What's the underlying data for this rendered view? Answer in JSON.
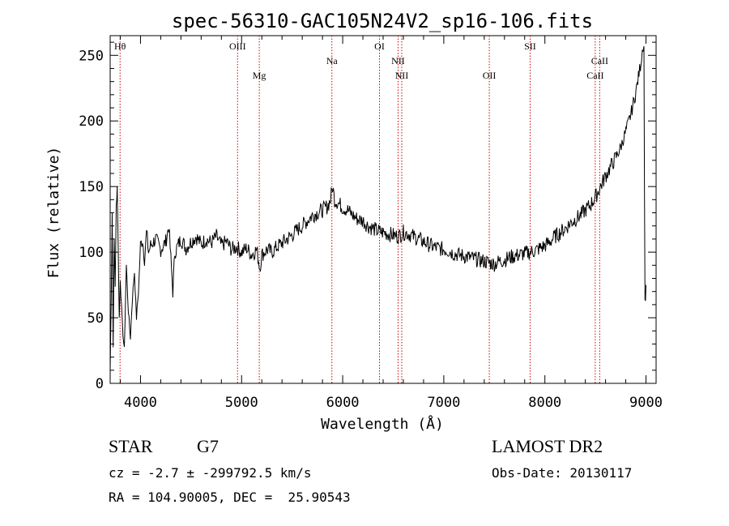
{
  "chart_data": {
    "type": "line",
    "title": "spec-56310-GAC105N24V2_sp16-106.fits",
    "xlabel": "Wavelength (Å)",
    "ylabel": "Flux (relative)",
    "xlim": [
      3700,
      9100
    ],
    "ylim": [
      0,
      265
    ],
    "x_ticks": [
      "4000",
      "5000",
      "6000",
      "7000",
      "8000",
      "9000"
    ],
    "x_tick_values": [
      4000,
      5000,
      6000,
      7000,
      8000,
      9000
    ],
    "y_ticks": [
      "0",
      "50",
      "100",
      "150",
      "200",
      "250"
    ],
    "y_tick_values": [
      0,
      50,
      100,
      150,
      200,
      250
    ],
    "grid": false,
    "line_color": "#000000",
    "marker_color": "#cc0000",
    "lines": [
      {
        "label": "Hθ",
        "x": 3798,
        "row": 0
      },
      {
        "label": "OIII",
        "x": 4960,
        "row": 0
      },
      {
        "label": "Mg",
        "x": 5175,
        "row": 2
      },
      {
        "label": "Na",
        "x": 5893,
        "row": 1
      },
      {
        "label": "OI",
        "x": 6364,
        "row": 0
      },
      {
        "label": "NII",
        "x": 6548,
        "row": 1
      },
      {
        "label": "NII",
        "x": 6584,
        "row": 2
      },
      {
        "label": "OII",
        "x": 7450,
        "row": 2
      },
      {
        "label": "SII",
        "x": 7854,
        "row": 0
      },
      {
        "label": "CaII",
        "x": 8498,
        "row": 2
      },
      {
        "label": "CaII",
        "x": 8542,
        "row": 1
      }
    ],
    "series": [
      {
        "values_xy": [
          [
            3700,
            10
          ],
          [
            3710,
            60
          ],
          [
            3720,
            130
          ],
          [
            3730,
            30
          ],
          [
            3740,
            110
          ],
          [
            3750,
            75
          ],
          [
            3760,
            135
          ],
          [
            3770,
            150
          ],
          [
            3780,
            100
          ],
          [
            3790,
            50
          ],
          [
            3800,
            80
          ],
          [
            3820,
            45
          ],
          [
            3840,
            25
          ],
          [
            3860,
            90
          ],
          [
            3880,
            55
          ],
          [
            3900,
            35
          ],
          [
            3920,
            65
          ],
          [
            3940,
            85
          ],
          [
            3960,
            50
          ],
          [
            3980,
            70
          ],
          [
            4000,
            105
          ],
          [
            4020,
            110
          ],
          [
            4040,
            95
          ],
          [
            4060,
            115
          ],
          [
            4080,
            100
          ],
          [
            4100,
            105
          ],
          [
            4150,
            110
          ],
          [
            4200,
            102
          ],
          [
            4250,
            108
          ],
          [
            4280,
            120
          ],
          [
            4300,
            95
          ],
          [
            4320,
            70
          ],
          [
            4340,
            100
          ],
          [
            4400,
            110
          ],
          [
            4450,
            103
          ],
          [
            4500,
            108
          ],
          [
            4550,
            112
          ],
          [
            4600,
            106
          ],
          [
            4650,
            110
          ],
          [
            4700,
            107
          ],
          [
            4750,
            112
          ],
          [
            4800,
            105
          ],
          [
            4850,
            108
          ],
          [
            4900,
            102
          ],
          [
            4950,
            104
          ],
          [
            5000,
            100
          ],
          [
            5050,
            103
          ],
          [
            5100,
            98
          ],
          [
            5150,
            102
          ],
          [
            5180,
            88
          ],
          [
            5200,
            98
          ],
          [
            5250,
            102
          ],
          [
            5300,
            100
          ],
          [
            5350,
            104
          ],
          [
            5400,
            107
          ],
          [
            5450,
            110
          ],
          [
            5500,
            113
          ],
          [
            5550,
            117
          ],
          [
            5600,
            120
          ],
          [
            5650,
            124
          ],
          [
            5700,
            128
          ],
          [
            5750,
            130
          ],
          [
            5800,
            132
          ],
          [
            5850,
            135
          ],
          [
            5880,
            140
          ],
          [
            5900,
            150
          ],
          [
            5920,
            140
          ],
          [
            5950,
            138
          ],
          [
            6000,
            134
          ],
          [
            6050,
            132
          ],
          [
            6100,
            128
          ],
          [
            6150,
            125
          ],
          [
            6200,
            124
          ],
          [
            6250,
            120
          ],
          [
            6300,
            118
          ],
          [
            6350,
            116
          ],
          [
            6400,
            115
          ],
          [
            6450,
            114
          ],
          [
            6500,
            113
          ],
          [
            6550,
            112
          ],
          [
            6600,
            115
          ],
          [
            6650,
            114
          ],
          [
            6700,
            112
          ],
          [
            6750,
            110
          ],
          [
            6800,
            108
          ],
          [
            6850,
            106
          ],
          [
            6900,
            104
          ],
          [
            6950,
            103
          ],
          [
            7000,
            102
          ],
          [
            7050,
            101
          ],
          [
            7100,
            99
          ],
          [
            7150,
            98
          ],
          [
            7200,
            97
          ],
          [
            7250,
            96
          ],
          [
            7300,
            95
          ],
          [
            7350,
            94
          ],
          [
            7400,
            93
          ],
          [
            7450,
            92
          ],
          [
            7500,
            91
          ],
          [
            7550,
            93
          ],
          [
            7600,
            94
          ],
          [
            7650,
            96
          ],
          [
            7700,
            97
          ],
          [
            7750,
            98
          ],
          [
            7800,
            99
          ],
          [
            7850,
            100
          ],
          [
            7900,
            101
          ],
          [
            7950,
            103
          ],
          [
            8000,
            105
          ],
          [
            8050,
            108
          ],
          [
            8100,
            112
          ],
          [
            8150,
            115
          ],
          [
            8200,
            118
          ],
          [
            8250,
            122
          ],
          [
            8300,
            125
          ],
          [
            8350,
            128
          ],
          [
            8400,
            132
          ],
          [
            8450,
            136
          ],
          [
            8500,
            142
          ],
          [
            8550,
            150
          ],
          [
            8600,
            158
          ],
          [
            8650,
            165
          ],
          [
            8700,
            172
          ],
          [
            8750,
            180
          ],
          [
            8800,
            192
          ],
          [
            8850,
            205
          ],
          [
            8900,
            222
          ],
          [
            8950,
            245
          ],
          [
            8970,
            258
          ],
          [
            8980,
            255
          ],
          [
            8990,
            60
          ],
          [
            9000,
            75
          ]
        ]
      }
    ]
  },
  "info": {
    "object_type": "STAR",
    "subclass": "G7",
    "survey": "LAMOST DR2",
    "cz": "cz = -2.7 ± -299792.5 km/s",
    "obs_date": "Obs-Date: 20130117",
    "coords": "RA = 104.90005, DEC =  25.90543"
  }
}
